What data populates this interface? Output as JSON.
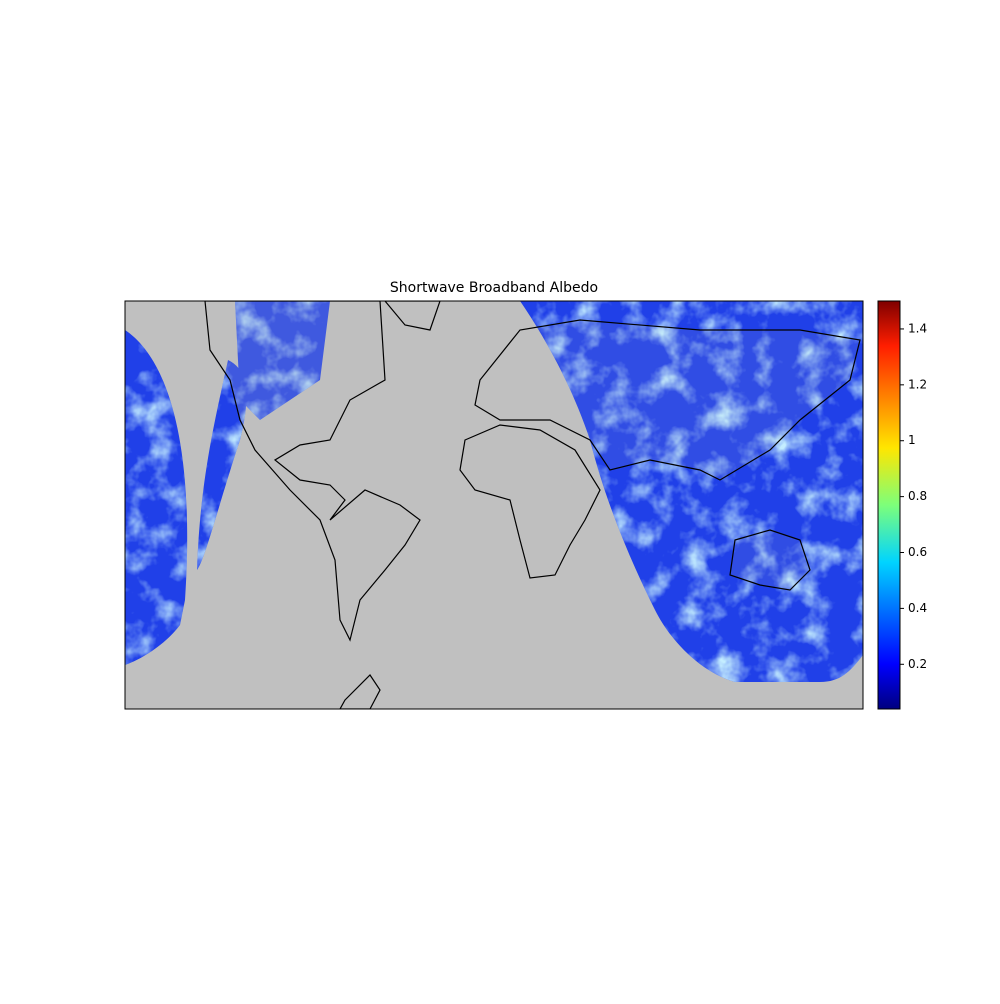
{
  "chart_data": {
    "type": "map",
    "title": "Shortwave Broadband Albedo",
    "colorbar": {
      "clim": [
        0.04,
        1.5
      ],
      "ticks": [
        0.2,
        0.4,
        0.6,
        0.8,
        1.0,
        1.2,
        1.4
      ]
    }
  }
}
